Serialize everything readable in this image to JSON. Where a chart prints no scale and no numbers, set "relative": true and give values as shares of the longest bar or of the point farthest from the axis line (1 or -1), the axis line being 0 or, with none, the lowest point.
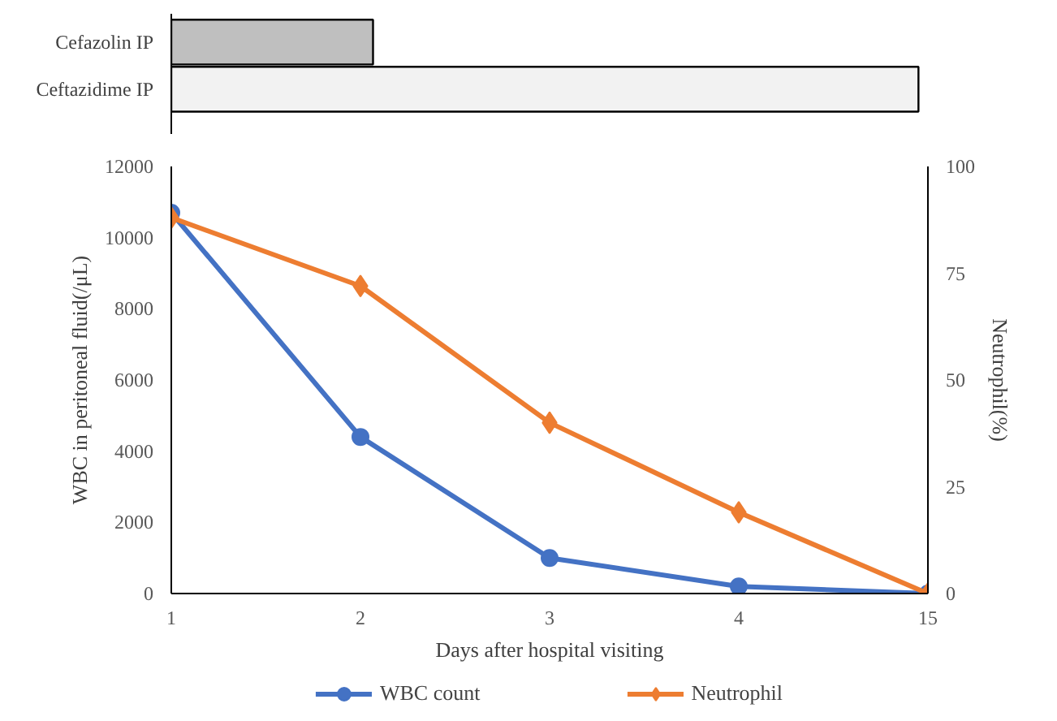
{
  "chart_data": [
    {
      "type": "bar",
      "orientation": "horizontal",
      "relative": true,
      "categories": [
        "Cefazolin IP",
        "Ceftazidime IP"
      ],
      "values": [
        0.27,
        1
      ],
      "colors": [
        "#bfbfbf",
        "#f2f2f2"
      ],
      "tick_labels": "y"
    },
    {
      "type": "line",
      "xlabel": "Days after hospital visiting",
      "ylabel": "WBC in peritoneal fluid(/μL)",
      "y2label": "Neutrophil(%)",
      "categories": [
        "1",
        "2",
        "3",
        "4",
        "15"
      ],
      "ylim": [
        0,
        12000
      ],
      "yticks": [
        0,
        2000,
        4000,
        6000,
        8000,
        10000,
        12000
      ],
      "y2lim": [
        0,
        100
      ],
      "y2ticks": [
        0,
        25,
        50,
        75,
        100
      ],
      "legend": "bottom",
      "series": [
        {
          "name": "WBC count",
          "color": "#4472c4",
          "marker": "circle",
          "values": [
            10700,
            4400,
            1000,
            200,
            0
          ]
        },
        {
          "name": "Neutrophil",
          "color": "#ed7d31",
          "marker": "diamond",
          "axis": "y2",
          "values": [
            88,
            72,
            40,
            19,
            0
          ]
        }
      ]
    }
  ]
}
